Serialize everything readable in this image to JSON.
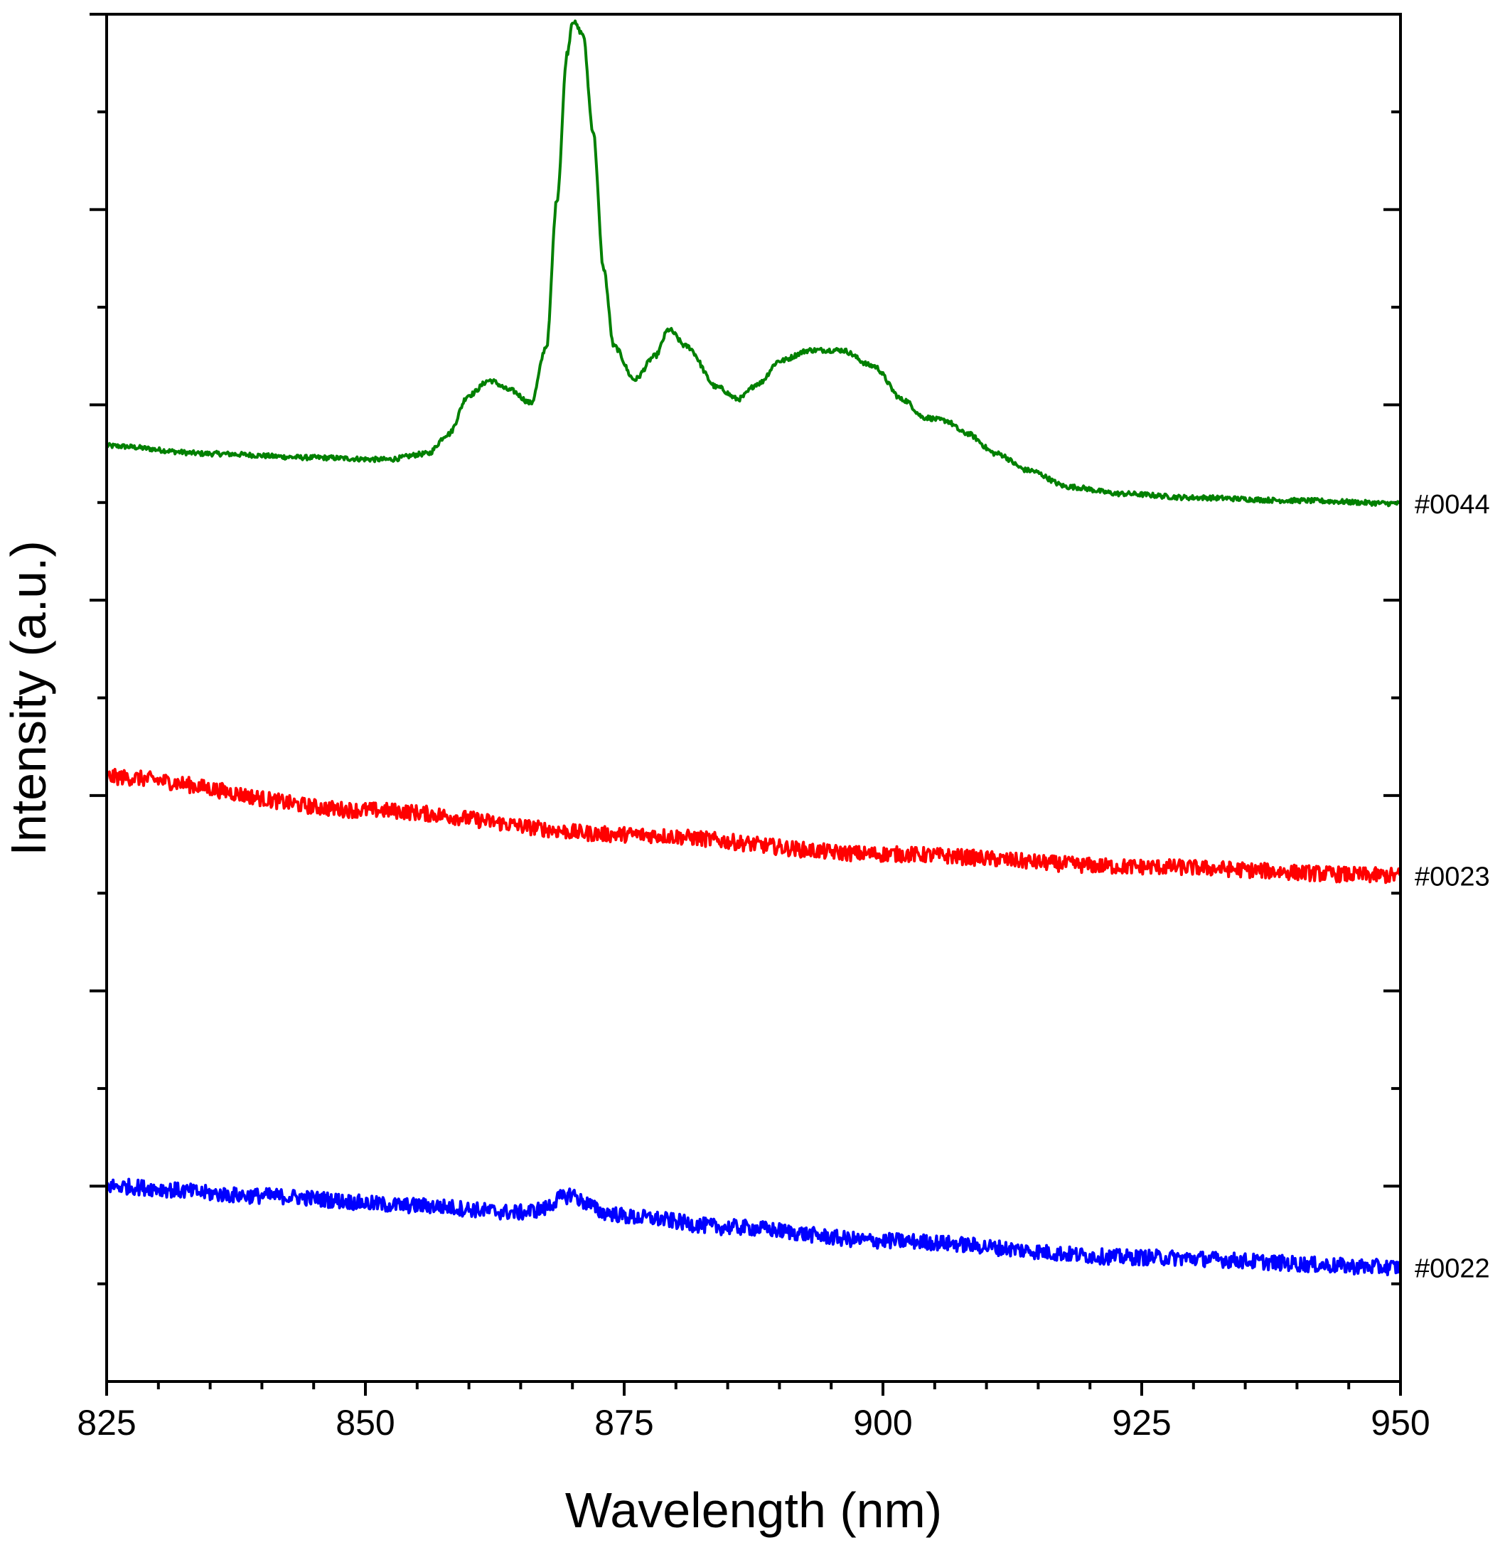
{
  "chart_data": {
    "type": "line",
    "title": "",
    "xlabel": "Wavelength (nm)",
    "ylabel": "Intensity (a.u.)",
    "xlim": [
      825,
      950
    ],
    "ylim": [
      0,
      14
    ],
    "x_ticks": [
      825,
      850,
      875,
      900,
      925,
      950
    ],
    "x_tick_labels": [
      "825",
      "850",
      "875",
      "900",
      "925",
      "950"
    ],
    "y_tick_labels_shown": false,
    "grid": false,
    "legend": "series labels at right edge",
    "series": [
      {
        "name": "#0044",
        "color": "#008000",
        "noise": 0.025,
        "points": [
          [
            825,
            9.58
          ],
          [
            835,
            9.5
          ],
          [
            845,
            9.46
          ],
          [
            852,
            9.44
          ],
          [
            856,
            9.5
          ],
          [
            858,
            9.7
          ],
          [
            860,
            10.1
          ],
          [
            862,
            10.25
          ],
          [
            864,
            10.15
          ],
          [
            866,
            10.02
          ],
          [
            867.5,
            10.6
          ],
          [
            868.5,
            12.1
          ],
          [
            869.5,
            13.6
          ],
          [
            870,
            13.93
          ],
          [
            871,
            13.8
          ],
          [
            872,
            12.8
          ],
          [
            873,
            11.4
          ],
          [
            874,
            10.6
          ],
          [
            876,
            10.26
          ],
          [
            878,
            10.5
          ],
          [
            879.3,
            10.77
          ],
          [
            881,
            10.6
          ],
          [
            884,
            10.18
          ],
          [
            886,
            10.06
          ],
          [
            888,
            10.22
          ],
          [
            890,
            10.45
          ],
          [
            893,
            10.56
          ],
          [
            896,
            10.56
          ],
          [
            899,
            10.4
          ],
          [
            902,
            10.05
          ],
          [
            904,
            9.87
          ],
          [
            906,
            9.84
          ],
          [
            908,
            9.71
          ],
          [
            911,
            9.5
          ],
          [
            914,
            9.33
          ],
          [
            918,
            9.16
          ],
          [
            923,
            9.09
          ],
          [
            930,
            9.05
          ],
          [
            940,
            9.02
          ],
          [
            950,
            8.99
          ]
        ]
      },
      {
        "name": "#0023",
        "color": "#ff0000",
        "noise": 0.08,
        "points": [
          [
            825,
            6.19
          ],
          [
            850,
            5.85
          ],
          [
            875,
            5.6
          ],
          [
            900,
            5.4
          ],
          [
            925,
            5.27
          ],
          [
            950,
            5.18
          ]
        ]
      },
      {
        "name": "#0022",
        "color": "#0000ff",
        "noise": 0.08,
        "points": [
          [
            825,
            2.0
          ],
          [
            840,
            1.9
          ],
          [
            855,
            1.8
          ],
          [
            865,
            1.73
          ],
          [
            867,
            1.76
          ],
          [
            869,
            1.88
          ],
          [
            870,
            1.92
          ],
          [
            871,
            1.84
          ],
          [
            873,
            1.73
          ],
          [
            876,
            1.68
          ],
          [
            885,
            1.58
          ],
          [
            900,
            1.44
          ],
          [
            925,
            1.27
          ],
          [
            950,
            1.17
          ]
        ]
      }
    ]
  }
}
